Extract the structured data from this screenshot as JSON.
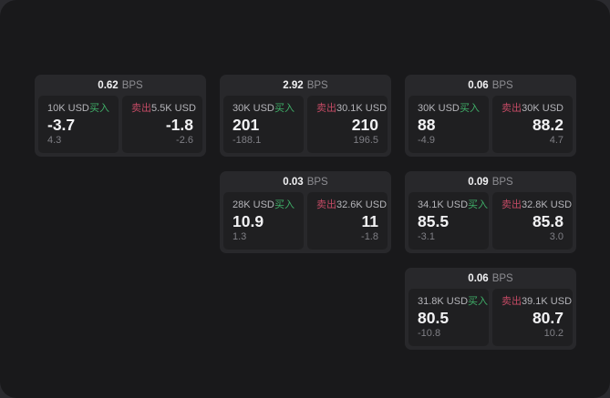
{
  "theme": {
    "outer_bg": "#2a2a2e",
    "window_bg": "#19191b",
    "card_bg": "#28282b",
    "panel_bg": "#1f1f21",
    "buy_color": "#3fae68",
    "sell_color": "#c34a64",
    "value_color": "#f2f2f4",
    "label_color": "#b5b5ba",
    "muted_color": "#7f7f85",
    "bps_label_color": "#8d8d92"
  },
  "labels": {
    "bps_unit": "BPS",
    "buy": "买入",
    "sell": "卖出"
  },
  "cards": [
    {
      "bps": "0.62",
      "col": 1,
      "row": 1,
      "buy": {
        "amount": "10K USD",
        "value": "-3.7",
        "sub": "4.3"
      },
      "sell": {
        "amount": "5.5K USD",
        "value": "-1.8",
        "sub": "-2.6"
      }
    },
    {
      "bps": "2.92",
      "col": 2,
      "row": 1,
      "buy": {
        "amount": "30K USD",
        "value": "201",
        "sub": "-188.1"
      },
      "sell": {
        "amount": "30.1K USD",
        "value": "210",
        "sub": "196.5"
      }
    },
    {
      "bps": "0.06",
      "col": 3,
      "row": 1,
      "buy": {
        "amount": "30K USD",
        "value": "88",
        "sub": "-4.9"
      },
      "sell": {
        "amount": "30K USD",
        "value": "88.2",
        "sub": "4.7"
      }
    },
    {
      "bps": "0.03",
      "col": 2,
      "row": 2,
      "buy": {
        "amount": "28K USD",
        "value": "10.9",
        "sub": "1.3"
      },
      "sell": {
        "amount": "32.6K USD",
        "value": "11",
        "sub": "-1.8"
      }
    },
    {
      "bps": "0.09",
      "col": 3,
      "row": 2,
      "buy": {
        "amount": "34.1K USD",
        "value": "85.5",
        "sub": "-3.1"
      },
      "sell": {
        "amount": "32.8K USD",
        "value": "85.8",
        "sub": "3.0"
      }
    },
    {
      "bps": "0.06",
      "col": 3,
      "row": 3,
      "buy": {
        "amount": "31.8K USD",
        "value": "80.5",
        "sub": "-10.8"
      },
      "sell": {
        "amount": "39.1K USD",
        "value": "80.7",
        "sub": "10.2"
      }
    }
  ]
}
